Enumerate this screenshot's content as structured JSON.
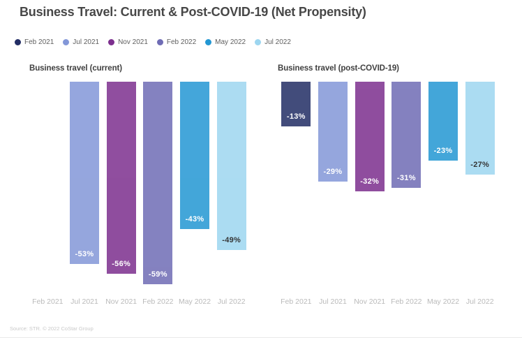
{
  "page": {
    "title": "Business Travel: Current & Post-COVID-19 (Net Propensity)",
    "source": "Source: STR. © 2022 CoStar Group"
  },
  "legend": {
    "position": "top-left",
    "items": [
      {
        "label": "Feb 2021",
        "color": "#222d64",
        "value_text_color": "#ffffff"
      },
      {
        "label": "Jul 2021",
        "color": "#8397d8",
        "value_text_color": "#ffffff"
      },
      {
        "label": "Nov 2021",
        "color": "#7c2f8e",
        "value_text_color": "#ffffff"
      },
      {
        "label": "Feb 2022",
        "color": "#6f6cb5",
        "value_text_color": "#ffffff"
      },
      {
        "label": "May 2022",
        "color": "#2397d3",
        "value_text_color": "#ffffff"
      },
      {
        "label": "Jul 2022",
        "color": "#9dd6f0",
        "value_text_color": "#111111"
      }
    ]
  },
  "chart_data": [
    {
      "type": "bar",
      "title": "Business travel (current)",
      "categories": [
        "Feb 2021",
        "Jul 2021",
        "Nov 2021",
        "Feb 2022",
        "May 2022",
        "Jul 2022"
      ],
      "values": [
        null,
        -53,
        -56,
        -59,
        -43,
        -49
      ],
      "data_labels": [
        "",
        "-53%",
        "-56%",
        "-59%",
        "-43%",
        "-49%"
      ],
      "xlabel": "",
      "ylabel": "",
      "ylim": [
        -60,
        0
      ],
      "grid": false,
      "bars_hang_from_zero_at_top": true,
      "bar_opacity": 0.85
    },
    {
      "type": "bar",
      "title": "Business travel (post-COVID-19)",
      "categories": [
        "Feb 2021",
        "Jul 2021",
        "Nov 2021",
        "Feb 2022",
        "May 2022",
        "Jul 2022"
      ],
      "values": [
        -13,
        -29,
        -32,
        -31,
        -23,
        -27
      ],
      "data_labels": [
        "-13%",
        "-29%",
        "-32%",
        "-31%",
        "-23%",
        "-27%"
      ],
      "xlabel": "",
      "ylabel": "",
      "ylim": [
        -60,
        0
      ],
      "grid": false,
      "bars_hang_from_zero_at_top": true,
      "bar_opacity": 0.85
    }
  ]
}
